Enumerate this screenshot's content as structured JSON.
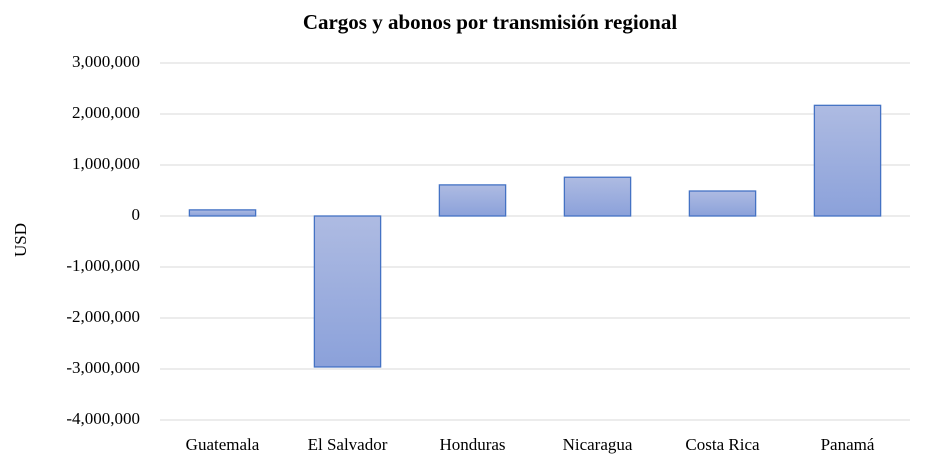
{
  "chart_data": {
    "type": "bar",
    "title": "Cargos y abonos por transmisión regional",
    "y_label": "USD",
    "categories": [
      "Guatemala",
      "El Salvador",
      "Honduras",
      "Nicaragua",
      "Costa Rica",
      "Panamá"
    ],
    "values": [
      120000,
      -2960000,
      610000,
      760000,
      490000,
      2170000
    ],
    "color": "#4472c4",
    "ylim": [
      -4000000,
      3000000
    ],
    "yticks": [
      {
        "value": -4000000,
        "label": "-4,000,000"
      },
      {
        "value": -3000000,
        "label": "-3,000,000"
      },
      {
        "value": -2000000,
        "label": "-2,000,000"
      },
      {
        "value": -1000000,
        "label": "-1,000,000"
      },
      0,
      {
        "value": 1000000,
        "label": "1,000,000"
      },
      {
        "value": 2000000,
        "label": "2,000,000"
      },
      {
        "value": 3000000,
        "label": "3,000,000"
      }
    ],
    "grid": true
  }
}
